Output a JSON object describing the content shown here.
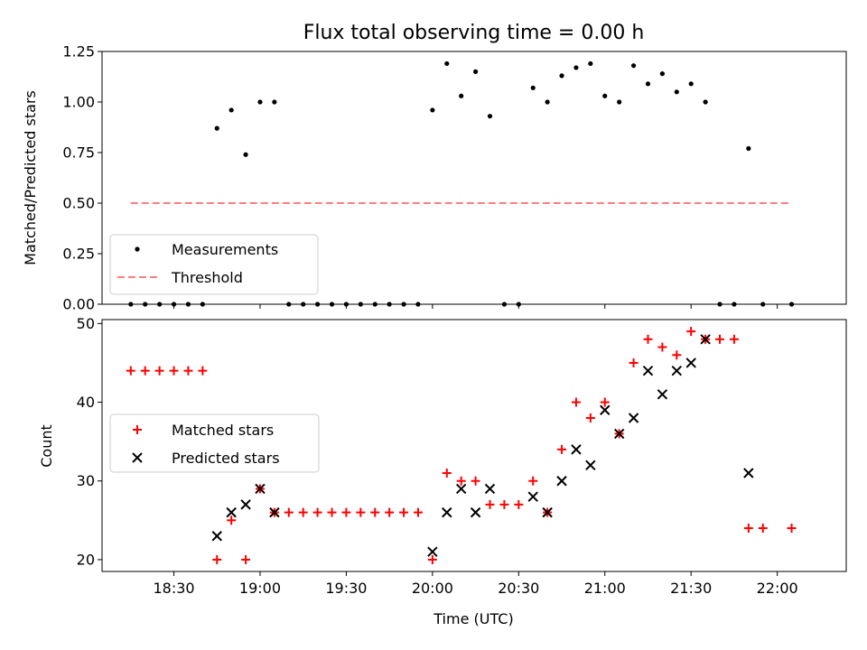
{
  "chart_data": [
    {
      "type": "scatter",
      "title": "Flux total observing time = 0.00 h",
      "xlabel": "",
      "ylabel": "Matched/Predicted stars",
      "xlim": [
        "18:05",
        "22:24"
      ],
      "ylim": [
        0,
        1.25
      ],
      "yticks": [
        "0.00",
        "0.25",
        "0.50",
        "0.75",
        "1.00",
        "1.25"
      ],
      "legend_position": "lower-left",
      "series": [
        {
          "name": "Measurements",
          "marker": "dot",
          "color": "#000000",
          "points": [
            [
              "18:15",
              0
            ],
            [
              "18:20",
              0
            ],
            [
              "18:25",
              0
            ],
            [
              "18:30",
              0
            ],
            [
              "18:35",
              0
            ],
            [
              "18:40",
              0
            ],
            [
              "18:45",
              0.87
            ],
            [
              "18:50",
              0.96
            ],
            [
              "18:55",
              0.74
            ],
            [
              "19:00",
              1.0
            ],
            [
              "19:05",
              1.0
            ],
            [
              "19:10",
              0
            ],
            [
              "19:15",
              0
            ],
            [
              "19:20",
              0
            ],
            [
              "19:25",
              0
            ],
            [
              "19:30",
              0
            ],
            [
              "19:35",
              0
            ],
            [
              "19:40",
              0
            ],
            [
              "19:45",
              0
            ],
            [
              "19:50",
              0
            ],
            [
              "19:55",
              0
            ],
            [
              "20:00",
              0.96
            ],
            [
              "20:05",
              1.19
            ],
            [
              "20:10",
              1.03
            ],
            [
              "20:15",
              1.15
            ],
            [
              "20:20",
              0.93
            ],
            [
              "20:25",
              0
            ],
            [
              "20:30",
              0
            ],
            [
              "20:35",
              1.07
            ],
            [
              "20:40",
              1.0
            ],
            [
              "20:45",
              1.13
            ],
            [
              "20:50",
              1.17
            ],
            [
              "20:55",
              1.19
            ],
            [
              "21:00",
              1.03
            ],
            [
              "21:05",
              1.0
            ],
            [
              "21:10",
              1.18
            ],
            [
              "21:15",
              1.09
            ],
            [
              "21:20",
              1.14
            ],
            [
              "21:25",
              1.05
            ],
            [
              "21:30",
              1.09
            ],
            [
              "21:35",
              1.0
            ],
            [
              "21:40",
              0
            ],
            [
              "21:45",
              0
            ],
            [
              "21:50",
              0.77
            ],
            [
              "21:55",
              0
            ],
            [
              "22:05",
              0
            ]
          ]
        },
        {
          "name": "Threshold",
          "line": "dashed",
          "color": "#ff7f7f",
          "points": [
            [
              "18:15",
              0.5
            ],
            [
              "22:05",
              0.5
            ]
          ]
        }
      ]
    },
    {
      "type": "scatter",
      "title": "",
      "xlabel": "Time (UTC)",
      "ylabel": "Count",
      "xlim": [
        "18:05",
        "22:24"
      ],
      "ylim": [
        18.5,
        50.5
      ],
      "yticks": [
        "20",
        "30",
        "40",
        "50"
      ],
      "xticks": [
        "18:30",
        "19:00",
        "19:30",
        "20:00",
        "20:30",
        "21:00",
        "21:30",
        "22:00"
      ],
      "legend_position": "center-left",
      "series": [
        {
          "name": "Matched stars",
          "marker": "plus",
          "color": "#ff0000",
          "points": [
            [
              "18:15",
              44
            ],
            [
              "18:20",
              44
            ],
            [
              "18:25",
              44
            ],
            [
              "18:30",
              44
            ],
            [
              "18:35",
              44
            ],
            [
              "18:40",
              44
            ],
            [
              "18:45",
              20
            ],
            [
              "18:50",
              25
            ],
            [
              "18:55",
              20
            ],
            [
              "19:00",
              29
            ],
            [
              "19:05",
              26
            ],
            [
              "19:10",
              26
            ],
            [
              "19:15",
              26
            ],
            [
              "19:20",
              26
            ],
            [
              "19:25",
              26
            ],
            [
              "19:30",
              26
            ],
            [
              "19:35",
              26
            ],
            [
              "19:40",
              26
            ],
            [
              "19:45",
              26
            ],
            [
              "19:50",
              26
            ],
            [
              "19:55",
              26
            ],
            [
              "20:00",
              20
            ],
            [
              "20:05",
              31
            ],
            [
              "20:10",
              30
            ],
            [
              "20:15",
              30
            ],
            [
              "20:20",
              27
            ],
            [
              "20:25",
              27
            ],
            [
              "20:30",
              27
            ],
            [
              "20:35",
              30
            ],
            [
              "20:40",
              26
            ],
            [
              "20:45",
              34
            ],
            [
              "20:50",
              40
            ],
            [
              "20:55",
              38
            ],
            [
              "21:00",
              40
            ],
            [
              "21:05",
              36
            ],
            [
              "21:10",
              45
            ],
            [
              "21:15",
              48
            ],
            [
              "21:20",
              47
            ],
            [
              "21:25",
              46
            ],
            [
              "21:30",
              49
            ],
            [
              "21:35",
              48
            ],
            [
              "21:40",
              48
            ],
            [
              "21:45",
              48
            ],
            [
              "21:50",
              24
            ],
            [
              "21:55",
              24
            ],
            [
              "22:05",
              24
            ]
          ]
        },
        {
          "name": "Predicted stars",
          "marker": "x",
          "color": "#000000",
          "points": [
            [
              "18:45",
              23
            ],
            [
              "18:50",
              26
            ],
            [
              "18:55",
              27
            ],
            [
              "19:00",
              29
            ],
            [
              "19:05",
              26
            ],
            [
              "20:00",
              21
            ],
            [
              "20:05",
              26
            ],
            [
              "20:10",
              29
            ],
            [
              "20:15",
              26
            ],
            [
              "20:20",
              29
            ],
            [
              "20:35",
              28
            ],
            [
              "20:40",
              26
            ],
            [
              "20:45",
              30
            ],
            [
              "20:50",
              34
            ],
            [
              "20:55",
              32
            ],
            [
              "21:00",
              39
            ],
            [
              "21:05",
              36
            ],
            [
              "21:10",
              38
            ],
            [
              "21:15",
              44
            ],
            [
              "21:20",
              41
            ],
            [
              "21:25",
              44
            ],
            [
              "21:30",
              45
            ],
            [
              "21:35",
              48
            ],
            [
              "21:50",
              31
            ]
          ]
        }
      ]
    }
  ]
}
